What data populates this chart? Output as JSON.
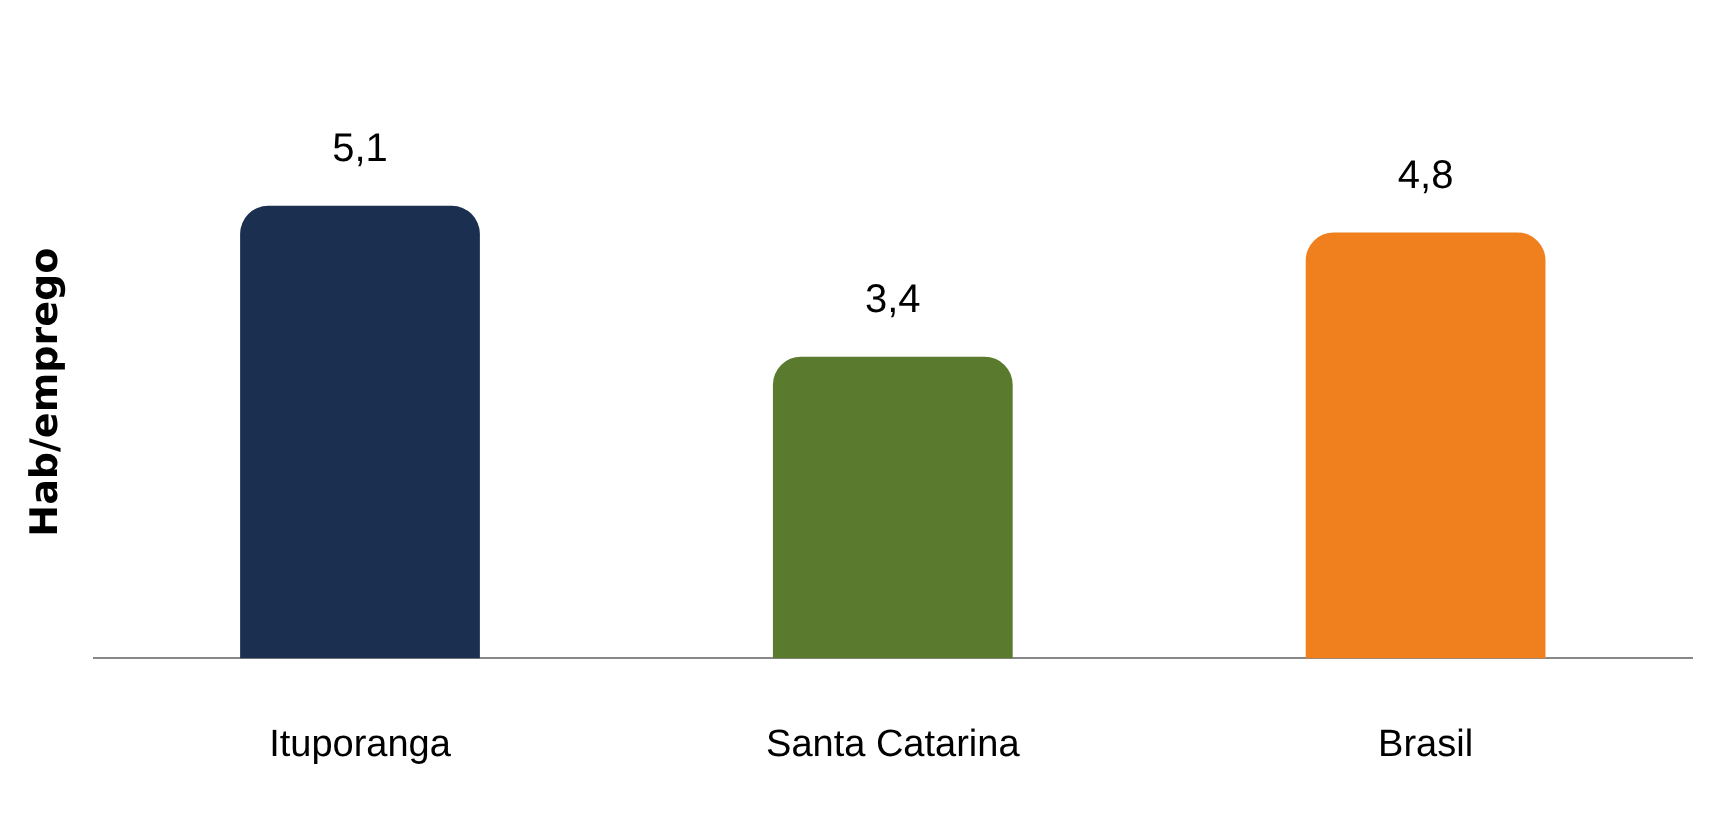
{
  "chart_data": {
    "type": "bar",
    "ylabel": "Hab/emprego",
    "categories": [
      "Ituporanga",
      "Santa Catarina",
      "Brasil"
    ],
    "values": [
      5.1,
      3.4,
      4.8
    ],
    "colors": [
      "#1b2f50",
      "#5a7a2e",
      "#f07f1e"
    ],
    "value_labels": [
      "5,1",
      "3,4",
      "4,8"
    ],
    "grid": false,
    "legend": false
  }
}
